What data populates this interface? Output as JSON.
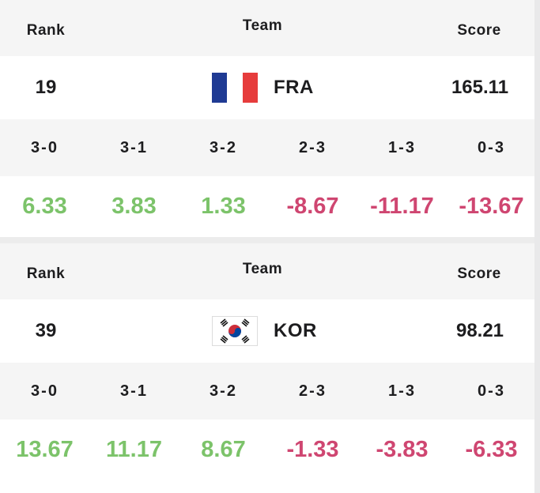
{
  "colors": {
    "positive": "#7cc36a",
    "negative": "#cf4671",
    "header_bg": "#f5f5f5"
  },
  "headers": {
    "rank": "Rank",
    "team": "Team",
    "score": "Score"
  },
  "cards": [
    {
      "rank": "19",
      "flag": "france-flag-icon",
      "team": "FRA",
      "score": "165.11",
      "sets": [
        "3-0",
        "3-1",
        "3-2",
        "2-3",
        "1-3",
        "0-3"
      ],
      "values": [
        "6.33",
        "3.83",
        "1.33",
        "-8.67",
        "-11.17",
        "-13.67"
      ]
    },
    {
      "rank": "39",
      "flag": "south-korea-flag-icon",
      "team": "KOR",
      "score": "98.21",
      "sets": [
        "3-0",
        "3-1",
        "3-2",
        "2-3",
        "1-3",
        "0-3"
      ],
      "values": [
        "13.67",
        "11.17",
        "8.67",
        "-1.33",
        "-3.83",
        "-6.33"
      ]
    }
  ]
}
